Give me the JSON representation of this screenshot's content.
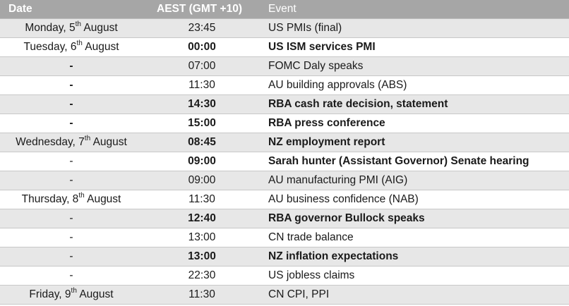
{
  "header": {
    "date": "Date",
    "time": "AEST (GMT +10)",
    "event": "Event"
  },
  "rows": [
    {
      "day": "Monday, 5",
      "sup": "th",
      "month": " August",
      "dash": "",
      "time": "23:45",
      "event": "US PMIs (final)",
      "bold": false,
      "shade": true
    },
    {
      "day": "Tuesday, 6",
      "sup": "th",
      "month": " August",
      "dash": "",
      "time": "00:00",
      "event": "US ISM services PMI",
      "bold": true,
      "shade": false
    },
    {
      "day": "",
      "sup": "",
      "month": "",
      "dash": "-",
      "dash_bold": true,
      "time": "07:00",
      "event": "FOMC Daly speaks",
      "bold": false,
      "shade": true
    },
    {
      "day": "",
      "sup": "",
      "month": "",
      "dash": "-",
      "dash_bold": true,
      "time": "11:30",
      "event": "AU building approvals (ABS)",
      "bold": false,
      "shade": false
    },
    {
      "day": "",
      "sup": "",
      "month": "",
      "dash": "-",
      "dash_bold": true,
      "time": "14:30",
      "event": "RBA cash rate decision, statement",
      "bold": true,
      "shade": true
    },
    {
      "day": "",
      "sup": "",
      "month": "",
      "dash": "-",
      "dash_bold": true,
      "time": "15:00",
      "event": "RBA press conference",
      "bold": true,
      "shade": false
    },
    {
      "day": "Wednesday, 7",
      "sup": "th",
      "month": " August",
      "dash": "",
      "time": "08:45",
      "event": "NZ employment report",
      "bold": true,
      "shade": true
    },
    {
      "day": "",
      "sup": "",
      "month": "",
      "dash": "-",
      "dash_bold": false,
      "time": "09:00",
      "event": "Sarah hunter (Assistant Governor) Senate hearing",
      "bold": true,
      "shade": false
    },
    {
      "day": "",
      "sup": "",
      "month": "",
      "dash": "-",
      "dash_bold": false,
      "time": "09:00",
      "event": "AU manufacturing PMI (AIG)",
      "bold": false,
      "shade": true
    },
    {
      "day": "Thursday, 8",
      "sup": "th",
      "month": " August",
      "dash": "",
      "time": "11:30",
      "event": "AU business confidence (NAB)",
      "bold": false,
      "shade": false
    },
    {
      "day": "",
      "sup": "",
      "month": "",
      "dash": "-",
      "dash_bold": false,
      "time": "12:40",
      "event": "RBA governor Bullock speaks",
      "bold": true,
      "shade": true
    },
    {
      "day": "",
      "sup": "",
      "month": "",
      "dash": "-",
      "dash_bold": false,
      "time": "13:00",
      "event": "CN trade balance",
      "bold": false,
      "shade": false
    },
    {
      "day": "",
      "sup": "",
      "month": "",
      "dash": "-",
      "dash_bold": false,
      "time": "13:00",
      "event": "NZ inflation expectations",
      "bold": true,
      "shade": true
    },
    {
      "day": "",
      "sup": "",
      "month": "",
      "dash": "-",
      "dash_bold": false,
      "time": "22:30",
      "event": "US jobless claims",
      "bold": false,
      "shade": false
    },
    {
      "day": "Friday, 9",
      "sup": "th",
      "month": " August",
      "dash": "",
      "time": "11:30",
      "event": "CN CPI, PPI",
      "bold": false,
      "shade": true
    }
  ]
}
